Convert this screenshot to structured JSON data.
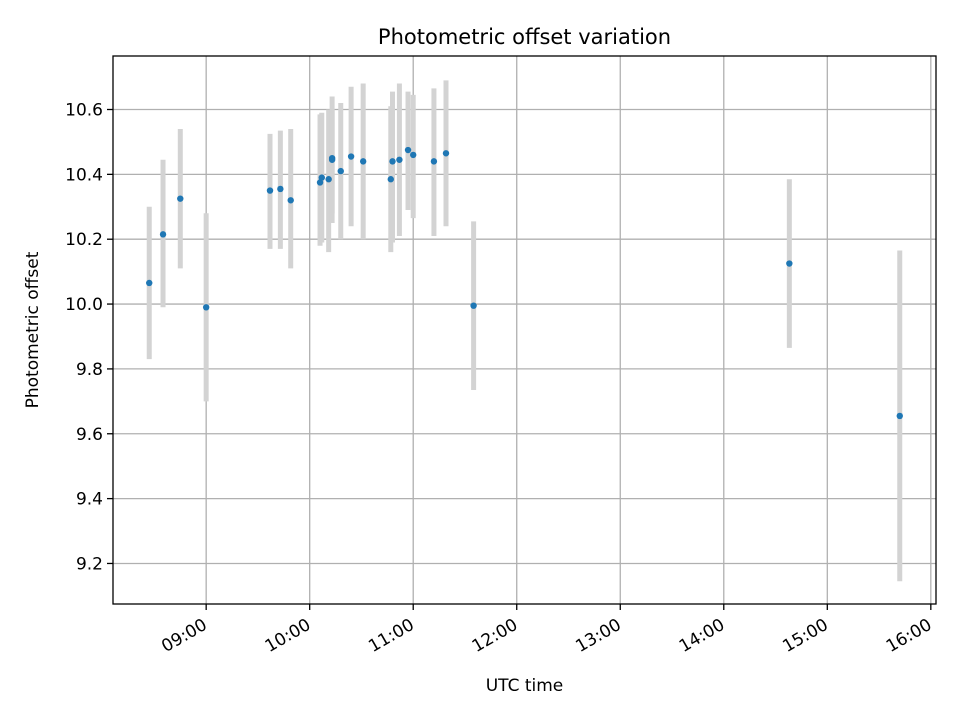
{
  "chart_data": {
    "type": "scatter",
    "title": "Photometric offset variation",
    "xlabel": "UTC time",
    "ylabel": "Photometric offset",
    "x_ticks": [
      "09:00",
      "10:00",
      "11:00",
      "12:00",
      "13:00",
      "14:00",
      "15:00",
      "16:00"
    ],
    "y_ticks": [
      "9.2",
      "9.4",
      "9.6",
      "9.8",
      "10.0",
      "10.2",
      "10.4",
      "10.6"
    ],
    "xlim": [
      "08:06",
      "16:03"
    ],
    "ylim": [
      9.075,
      10.765
    ],
    "grid": true,
    "point_color": "#1f77b4",
    "errorbar_color": "#d3d3d3",
    "points": [
      {
        "x": "08:27",
        "y": 10.065,
        "err_low": 9.83,
        "err_high": 10.3
      },
      {
        "x": "08:35",
        "y": 10.215,
        "err_low": 9.99,
        "err_high": 10.445
      },
      {
        "x": "08:45",
        "y": 10.325,
        "err_low": 10.11,
        "err_high": 10.54
      },
      {
        "x": "09:00",
        "y": 9.99,
        "err_low": 9.7,
        "err_high": 10.28
      },
      {
        "x": "09:37",
        "y": 10.35,
        "err_low": 10.17,
        "err_high": 10.525
      },
      {
        "x": "09:43",
        "y": 10.355,
        "err_low": 10.17,
        "err_high": 10.535
      },
      {
        "x": "09:49",
        "y": 10.32,
        "err_low": 10.11,
        "err_high": 10.54
      },
      {
        "x": "10:06",
        "y": 10.375,
        "err_low": 10.18,
        "err_high": 10.585
      },
      {
        "x": "10:07",
        "y": 10.39,
        "err_low": 10.19,
        "err_high": 10.59
      },
      {
        "x": "10:11",
        "y": 10.385,
        "err_low": 10.16,
        "err_high": 10.6
      },
      {
        "x": "10:13",
        "y": 10.45,
        "err_low": 10.25,
        "err_high": 10.64
      },
      {
        "x": "10:13",
        "y": 10.445,
        "err_low": 10.28,
        "err_high": 10.6
      },
      {
        "x": "10:18",
        "y": 10.41,
        "err_low": 10.2,
        "err_high": 10.62
      },
      {
        "x": "10:24",
        "y": 10.455,
        "err_low": 10.24,
        "err_high": 10.67
      },
      {
        "x": "10:31",
        "y": 10.44,
        "err_low": 10.2,
        "err_high": 10.68
      },
      {
        "x": "10:47",
        "y": 10.385,
        "err_low": 10.16,
        "err_high": 10.61
      },
      {
        "x": "10:48",
        "y": 10.44,
        "err_low": 10.19,
        "err_high": 10.655
      },
      {
        "x": "10:52",
        "y": 10.445,
        "err_low": 10.21,
        "err_high": 10.68
      },
      {
        "x": "10:57",
        "y": 10.475,
        "err_low": 10.29,
        "err_high": 10.655
      },
      {
        "x": "11:00",
        "y": 10.46,
        "err_low": 10.265,
        "err_high": 10.645
      },
      {
        "x": "11:12",
        "y": 10.44,
        "err_low": 10.21,
        "err_high": 10.665
      },
      {
        "x": "11:19",
        "y": 10.465,
        "err_low": 10.24,
        "err_high": 10.69
      },
      {
        "x": "11:35",
        "y": 9.995,
        "err_low": 9.735,
        "err_high": 10.255
      },
      {
        "x": "14:38",
        "y": 10.125,
        "err_low": 9.865,
        "err_high": 10.385
      },
      {
        "x": "15:42",
        "y": 9.655,
        "err_low": 9.145,
        "err_high": 10.165
      }
    ]
  }
}
